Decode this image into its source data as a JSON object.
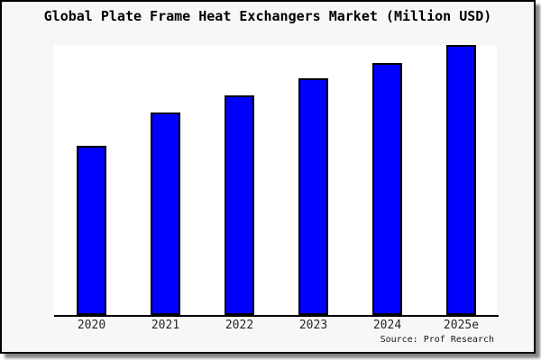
{
  "chart": {
    "title": "Global Plate Frame Heat Exchangers Market (Million USD)",
    "source": "Source: Prof Research"
  },
  "chart_data": {
    "type": "bar",
    "title": "Global Plate Frame Heat Exchangers Market (Million USD)",
    "unit": "Million USD",
    "categories": [
      "2020",
      "2021",
      "2022",
      "2023",
      "2024",
      "2025e"
    ],
    "values_relative_height_pct": [
      62.7,
      75.0,
      81.3,
      87.7,
      93.3,
      100.0
    ],
    "xlabel": "",
    "ylabel": "",
    "y_axis_tick_labels_visible": false,
    "gridlines": false,
    "legend": false,
    "bar_color": "#0000FF",
    "bar_border_color": "#000000",
    "source": "Source: Prof Research"
  },
  "colors": {
    "frame_background": "#f7f7f7",
    "plot_background": "#ffffff",
    "frame_border": "#000000",
    "shadow": "#8f8f8f"
  }
}
